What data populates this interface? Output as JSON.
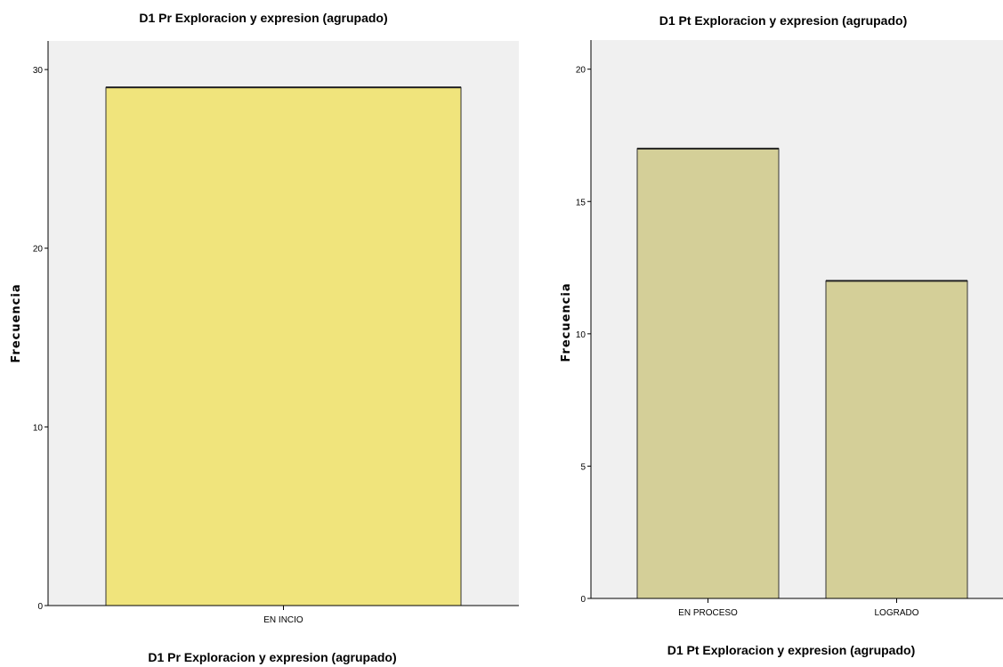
{
  "colors": {
    "plot_background": "#f0f0f0",
    "left_bar_fill": "#f0e47c",
    "right_bar_fill": "#d4cf98",
    "bar_stroke": "#333333",
    "axis_color": "#000000"
  },
  "chart_data": [
    {
      "type": "bar",
      "title": "D1 Pr Exploracion y expresion (agrupado)",
      "xlabel": "D1 Pr Exploracion y expresion (agrupado)",
      "ylabel": "Frecuencia",
      "categories": [
        "EN INCIO"
      ],
      "values": [
        29
      ],
      "ylim": [
        0,
        31.6
      ],
      "yticks": [
        0,
        10,
        20,
        30
      ],
      "ytick_labels": [
        "0",
        "10",
        "20",
        "30"
      ],
      "grid": false,
      "legend": "none"
    },
    {
      "type": "bar",
      "title": "D1 Pt Exploracion y expresion (agrupado)",
      "xlabel": "D1 Pt Exploracion y expresion (agrupado)",
      "ylabel": "Frecuencia",
      "categories": [
        "EN PROCESO",
        "LOGRADO"
      ],
      "values": [
        17,
        12
      ],
      "ylim": [
        0,
        21.1
      ],
      "yticks": [
        0,
        5,
        10,
        15,
        20
      ],
      "ytick_labels": [
        "0",
        "5",
        "10",
        "15",
        "20"
      ],
      "grid": false,
      "legend": "none"
    }
  ]
}
